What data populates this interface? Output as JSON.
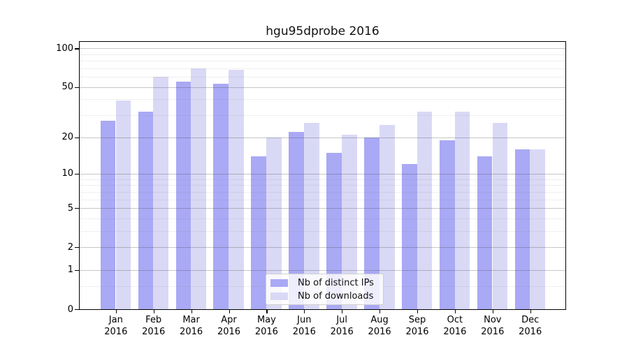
{
  "chart_data": {
    "type": "bar",
    "title": "hgu95dprobe 2016",
    "categories": [
      {
        "month": "Jan",
        "year": "2016"
      },
      {
        "month": "Feb",
        "year": "2016"
      },
      {
        "month": "Mar",
        "year": "2016"
      },
      {
        "month": "Apr",
        "year": "2016"
      },
      {
        "month": "May",
        "year": "2016"
      },
      {
        "month": "Jun",
        "year": "2016"
      },
      {
        "month": "Jul",
        "year": "2016"
      },
      {
        "month": "Aug",
        "year": "2016"
      },
      {
        "month": "Sep",
        "year": "2016"
      },
      {
        "month": "Oct",
        "year": "2016"
      },
      {
        "month": "Nov",
        "year": "2016"
      },
      {
        "month": "Dec",
        "year": "2016"
      }
    ],
    "series": [
      {
        "name": "Nb of distinct IPs",
        "color": "#a9a9f5",
        "values": [
          27,
          32,
          55,
          53,
          14,
          22,
          15,
          20,
          12,
          19,
          14,
          16
        ]
      },
      {
        "name": "Nb of downloads",
        "color": "#d9d9f6",
        "values": [
          39,
          60,
          70,
          68,
          20,
          26,
          21,
          25,
          32,
          32,
          26,
          16
        ]
      }
    ],
    "y_axis": {
      "scale": "log10(1+v)",
      "ticks": [
        0,
        1,
        2,
        5,
        10,
        20,
        50,
        100
      ],
      "tick_labels": [
        "0",
        "1",
        "2",
        "5",
        "10",
        "20",
        "50",
        "100"
      ],
      "minor_gridlines": [
        0.5,
        3,
        4,
        6,
        7,
        8,
        9,
        30,
        40,
        60,
        70,
        80,
        90
      ],
      "range_top_value": 116
    },
    "xlabel": "",
    "ylabel": "",
    "grid": "horizontal",
    "legend": {
      "position": "bottom-center"
    },
    "colors": {
      "major_gridline": "#c3c3c3",
      "minor_gridline": "#ededed",
      "spine": "#000000",
      "background": "#ffffff"
    }
  }
}
